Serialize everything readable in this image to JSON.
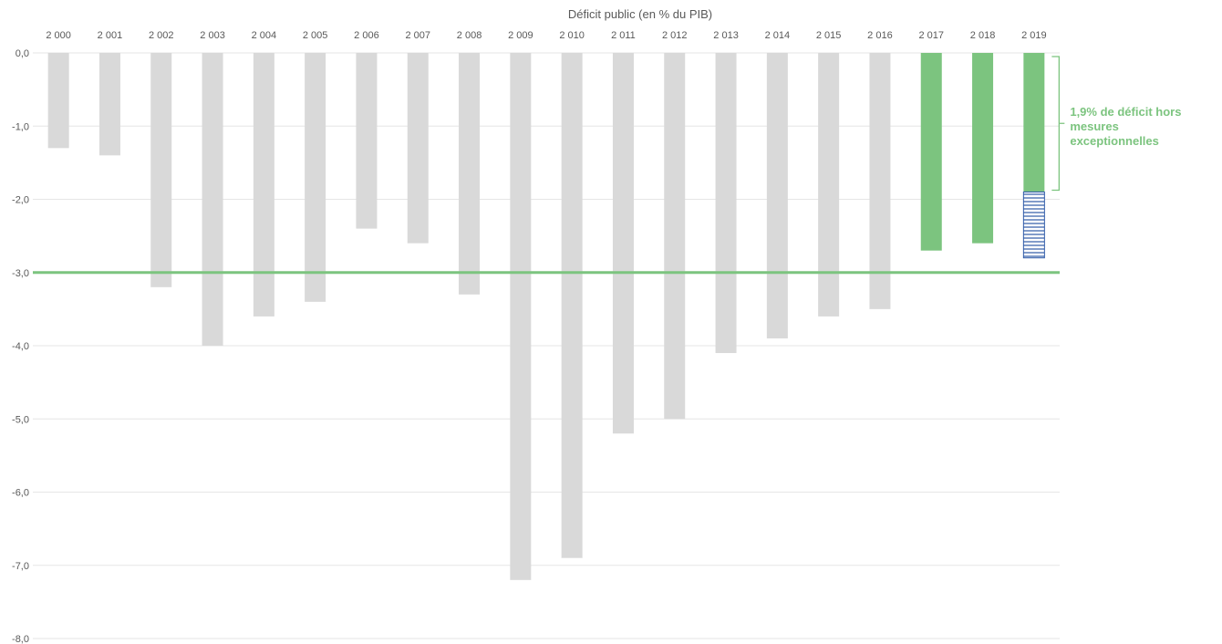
{
  "chart_data": {
    "type": "bar",
    "title": "Déficit public (en % du PIB)",
    "categories": [
      "2 000",
      "2 001",
      "2 002",
      "2 003",
      "2 004",
      "2 005",
      "2 006",
      "2 007",
      "2 008",
      "2 009",
      "2 010",
      "2 011",
      "2 012",
      "2 013",
      "2 014",
      "2 015",
      "2 016",
      "2 017",
      "2 018",
      "2 019"
    ],
    "values": [
      -1.3,
      -1.4,
      -3.2,
      -4.0,
      -3.6,
      -3.4,
      -2.4,
      -2.6,
      -3.3,
      -7.2,
      -6.9,
      -5.2,
      -5.0,
      -4.1,
      -3.9,
      -3.6,
      -3.5,
      -2.7,
      -2.6,
      -1.9
    ],
    "exceptional_measures": {
      "category": "2 019",
      "from": -1.9,
      "to": -2.8
    },
    "highlighted_categories": [
      "2 017",
      "2 018",
      "2 019"
    ],
    "yticks": [
      "0,0",
      "-1,0",
      "-2,0",
      "-3,0",
      "-4,0",
      "-5,0",
      "-6,0",
      "-7,0",
      "-8,0"
    ],
    "ylim": [
      -8,
      0
    ],
    "reference_line": -3.0,
    "annotation": [
      "1,9% de déficit hors",
      "mesures",
      "exceptionnelles"
    ],
    "grid": true,
    "colors": {
      "past": "#d9d9d9",
      "recent": "#7cc47f",
      "hatch": "#2e5aa8",
      "reference": "#7cc47f",
      "grid": "#e6e6e6",
      "text": "#595959"
    }
  }
}
